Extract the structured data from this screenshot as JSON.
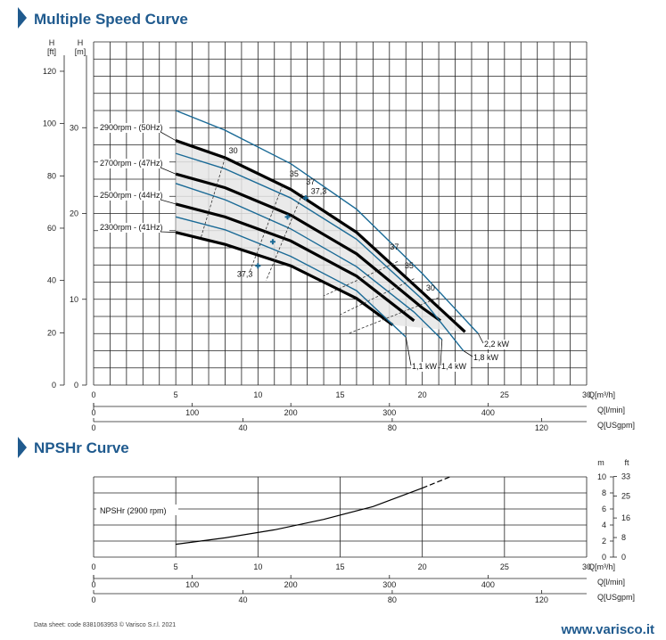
{
  "page": {
    "title1": "Multiple Speed Curve",
    "title2": "NPSHr Curve",
    "footer": "Data sheet: code 8381063953 © Varisco S.r.l. 2021",
    "website": "www.varisco.it",
    "accent_color": "#1f5a8e",
    "icon": "chevron-right-icon"
  },
  "chart_data": [
    {
      "type": "line",
      "title": "Multiple Speed Curve",
      "y_axes": [
        {
          "label": "H",
          "unit": "[ft]",
          "ticks": [
            "0",
            "20",
            "40",
            "60",
            "80",
            "100",
            "120"
          ]
        },
        {
          "label": "H",
          "unit": "[m]",
          "ticks": [
            "0",
            "10",
            "20",
            "30"
          ],
          "ylim": [
            0,
            40
          ]
        }
      ],
      "x_axes": [
        {
          "unit": "Q[m³/h]",
          "ticks": [
            "0",
            "5",
            "10",
            "15",
            "20",
            "25",
            "30"
          ],
          "xlim": [
            0,
            30
          ]
        },
        {
          "unit": "Q[l/min]",
          "ticks": [
            "0",
            "100",
            "200",
            "300",
            "400"
          ]
        },
        {
          "unit": "Q[USgpm]",
          "ticks": [
            "0",
            "40",
            "80",
            "120"
          ]
        }
      ],
      "grid": true,
      "series": [
        {
          "name": "2900rpm - (50Hz)",
          "color": "#000000",
          "x": [
            5,
            8,
            12,
            16,
            20,
            22.6
          ],
          "y": [
            28.5,
            26.5,
            22.8,
            17.8,
            10.8,
            6.2
          ]
        },
        {
          "name": "2700rpm - (47Hz)",
          "color": "#000000",
          "x": [
            5,
            8,
            12,
            16,
            20,
            21.1
          ],
          "y": [
            24.6,
            23.0,
            19.8,
            15.3,
            9.0,
            7.5
          ]
        },
        {
          "name": "2500rpm - (44Hz)",
          "color": "#000000",
          "x": [
            5,
            8,
            12,
            16,
            19.5
          ],
          "y": [
            21.1,
            19.6,
            16.8,
            12.7,
            7.5
          ]
        },
        {
          "name": "2300rpm - (41Hz)",
          "color": "#000000",
          "x": [
            5,
            8,
            12,
            16,
            18.2
          ],
          "y": [
            17.8,
            16.4,
            13.9,
            10.1,
            7.0
          ]
        },
        {
          "name": "2,2 kW",
          "color": "#1a6a96",
          "x": [
            5,
            8,
            12,
            16,
            20,
            23.4
          ],
          "y": [
            32.0,
            29.7,
            25.8,
            20.5,
            13.0,
            6.0
          ]
        },
        {
          "name": "1,8 kW",
          "color": "#1a6a96",
          "x": [
            5,
            8,
            12,
            16,
            20,
            22.5
          ],
          "y": [
            27.0,
            25.2,
            21.8,
            17.0,
            10.0,
            4.0
          ]
        },
        {
          "name": "1,4 kW",
          "color": "#1a6a96",
          "x": [
            5,
            8,
            12,
            16,
            19.5,
            21.2
          ],
          "y": [
            23.5,
            21.6,
            18.2,
            13.8,
            8.5,
            5.3
          ]
        },
        {
          "name": "1,1 kW",
          "color": "#1a6a96",
          "x": [
            5,
            8,
            12,
            16,
            19.0
          ],
          "y": [
            19.6,
            18.1,
            15.0,
            11.0,
            5.6
          ]
        }
      ],
      "efficiency_lines": [
        {
          "label": "30",
          "x": [
            8.0,
            6.5
          ],
          "y": [
            26.5,
            17.0
          ]
        },
        {
          "label": "35",
          "x": [
            11.5,
            9.5
          ],
          "y": [
            23.3,
            13.2
          ]
        },
        {
          "label": "37",
          "x": [
            12.7,
            10.5
          ],
          "y": [
            22.3,
            12.2
          ]
        },
        {
          "label": "37",
          "x": [
            18.5,
            14.0
          ],
          "y": [
            14.4,
            10.4
          ]
        },
        {
          "label": "35",
          "x": [
            19.5,
            15.0
          ],
          "y": [
            12.4,
            8.2
          ]
        },
        {
          "label": "30",
          "x": [
            21.0,
            15.5
          ],
          "y": [
            10.2,
            6.0
          ]
        }
      ],
      "efficiency_labels": [
        {
          "text": "30",
          "x": 8.5,
          "y": 27.0
        },
        {
          "text": "35",
          "x": 12.2,
          "y": 24.3
        },
        {
          "text": "37",
          "x": 13.2,
          "y": 23.4
        },
        {
          "text": "37,3",
          "x": 13.7,
          "y": 22.3
        },
        {
          "text": "37",
          "x": 18.3,
          "y": 15.8
        },
        {
          "text": "35",
          "x": 19.2,
          "y": 13.6
        },
        {
          "text": "30",
          "x": 20.5,
          "y": 11.0
        },
        {
          "text": "37,3",
          "x": 9.2,
          "y": 12.6
        }
      ],
      "best_efficiency_points": [
        {
          "x": 12.9,
          "y": 21.8
        },
        {
          "x": 11.8,
          "y": 19.6
        },
        {
          "x": 10.9,
          "y": 16.7
        },
        {
          "x": 10.0,
          "y": 13.9
        }
      ]
    },
    {
      "type": "line",
      "title": "NPSHr Curve",
      "y_axes": [
        {
          "label": "",
          "unit": "m",
          "ticks": [
            "0",
            "2",
            "4",
            "6",
            "8",
            "10"
          ],
          "ylim": [
            0,
            10
          ]
        },
        {
          "label": "",
          "unit": "ft",
          "ticks": [
            "0",
            "8",
            "16",
            "25",
            "33"
          ]
        }
      ],
      "x_axes": [
        {
          "unit": "Q[m³/h]",
          "ticks": [
            "0",
            "5",
            "10",
            "15",
            "20",
            "25",
            "30"
          ],
          "xlim": [
            0,
            30
          ]
        },
        {
          "unit": "Q[l/min]",
          "ticks": [
            "0",
            "100",
            "200",
            "300",
            "400"
          ]
        },
        {
          "unit": "Q[USgpm]",
          "ticks": [
            "0",
            "40",
            "80",
            "120"
          ]
        }
      ],
      "grid": true,
      "series": [
        {
          "name": "NPSHr (2900 rpm)",
          "color": "#000000",
          "x": [
            5,
            8,
            11,
            14,
            17,
            20
          ],
          "y": [
            1.6,
            2.4,
            3.4,
            4.7,
            6.3,
            8.6
          ]
        },
        {
          "name": "NPSHr (2900 rpm) extension",
          "color": "#000000",
          "dashed": true,
          "x": [
            20,
            21.8
          ],
          "y": [
            8.6,
            10.1
          ]
        }
      ]
    }
  ]
}
